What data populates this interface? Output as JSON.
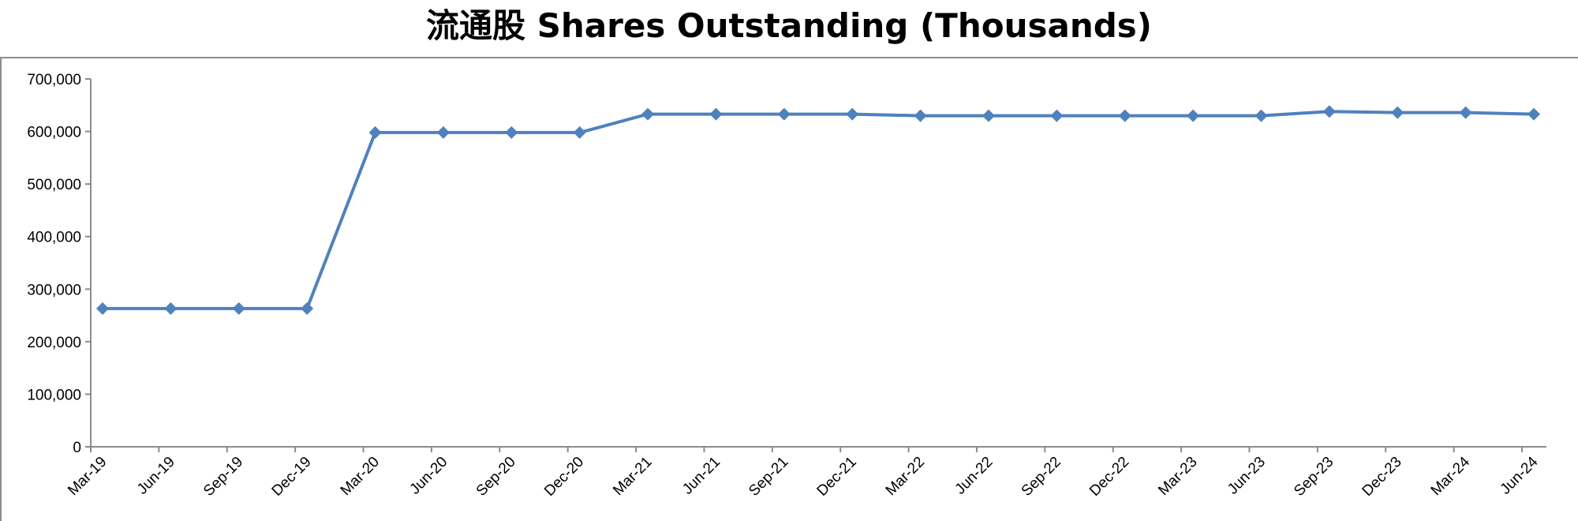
{
  "chart_data": {
    "type": "line",
    "title": "流通股 Shares Outstanding (Thousands)",
    "xlabel": "",
    "ylabel": "",
    "categories": [
      "Mar-19",
      "Jun-19",
      "Sep-19",
      "Dec-19",
      "Mar-20",
      "Jun-20",
      "Sep-20",
      "Dec-20",
      "Mar-21",
      "Jun-21",
      "Sep-21",
      "Dec-21",
      "Mar-22",
      "Jun-22",
      "Sep-22",
      "Dec-22",
      "Mar-23",
      "Jun-23",
      "Sep-23",
      "Dec-23",
      "Mar-24",
      "Jun-24"
    ],
    "series": [
      {
        "values": [
          263000,
          263000,
          263000,
          263000,
          598000,
          598000,
          598000,
          598000,
          633000,
          633000,
          633000,
          633000,
          630000,
          630000,
          630000,
          630000,
          630000,
          630000,
          638000,
          636000,
          636000,
          633000
        ],
        "color": "#4f81bd",
        "marker": "diamond"
      }
    ],
    "ylim": [
      0,
      700000
    ],
    "yticks": [
      "0",
      "100,000",
      "200,000",
      "300,000",
      "400,000",
      "500,000",
      "600,000",
      "700,000"
    ],
    "grid": false,
    "legend": "none"
  }
}
